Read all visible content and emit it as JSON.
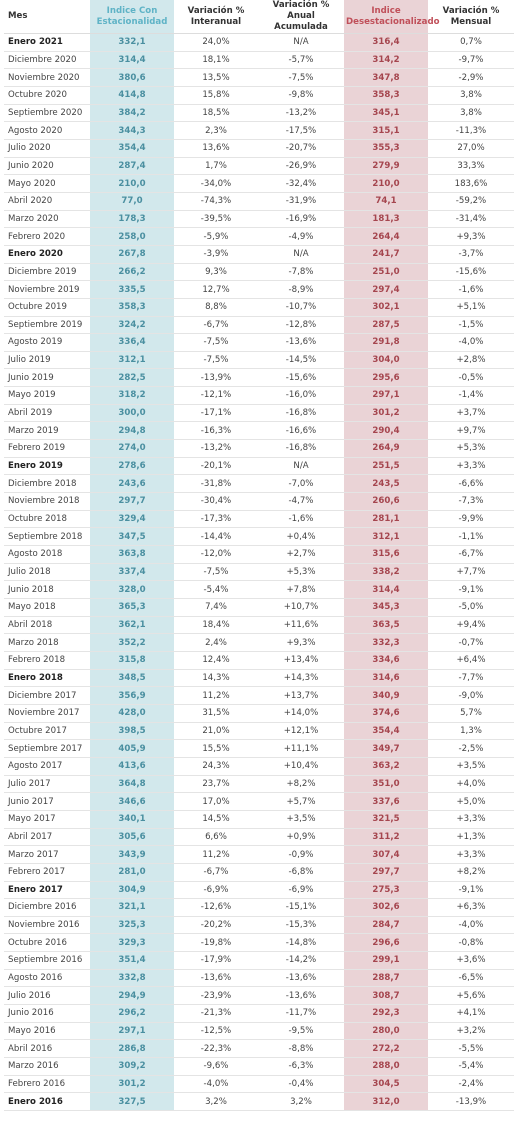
{
  "table": {
    "headers": [
      "Mes",
      "Indice Con Estacionalidad",
      "Variación % Interanual",
      "Variación % Anual Acumulada",
      "Indice Desestacionalizado",
      "Variación % Mensual"
    ],
    "rows": [
      [
        "Enero 2021",
        "332,1",
        "24,0%",
        "N/A",
        "316,4",
        "0,7%"
      ],
      [
        "Diciembre 2020",
        "314,4",
        "18,1%",
        "-5,7%",
        "314,2",
        "-9,7%"
      ],
      [
        "Noviembre 2020",
        "380,6",
        "13,5%",
        "-7,5%",
        "347,8",
        "-2,9%"
      ],
      [
        "Octubre 2020",
        "414,8",
        "15,8%",
        "-9,8%",
        "358,3",
        "3,8%"
      ],
      [
        "Septiembre 2020",
        "384,2",
        "18,5%",
        "-13,2%",
        "345,1",
        "3,8%"
      ],
      [
        "Agosto 2020",
        "344,3",
        "2,3%",
        "-17,5%",
        "315,1",
        "-11,3%"
      ],
      [
        "Julio 2020",
        "354,4",
        "13,6%",
        "-20,7%",
        "355,3",
        "27,0%"
      ],
      [
        "Junio 2020",
        "287,4",
        "1,7%",
        "-26,9%",
        "279,9",
        "33,3%"
      ],
      [
        "Mayo 2020",
        "210,0",
        "-34,0%",
        "-32,4%",
        "210,0",
        "183,6%"
      ],
      [
        "Abril 2020",
        "77,0",
        "-74,3%",
        "-31,9%",
        "74,1",
        "-59,2%"
      ],
      [
        "Marzo 2020",
        "178,3",
        "-39,5%",
        "-16,9%",
        "181,3",
        "-31,4%"
      ],
      [
        "Febrero 2020",
        "258,0",
        "-5,9%",
        "-4,9%",
        "264,4",
        "+9,3%"
      ],
      [
        "Enero 2020",
        "267,8",
        "-3,9%",
        "N/A",
        "241,7",
        "-3,7%"
      ],
      [
        "Diciembre 2019",
        "266,2",
        "9,3%",
        "-7,8%",
        "251,0",
        "-15,6%"
      ],
      [
        "Noviembre 2019",
        "335,5",
        "12,7%",
        "-8,9%",
        "297,4",
        "-1,6%"
      ],
      [
        "Octubre 2019",
        "358,3",
        "8,8%",
        "-10,7%",
        "302,1",
        "+5,1%"
      ],
      [
        "Septiembre 2019",
        "324,2",
        "-6,7%",
        "-12,8%",
        "287,5",
        "-1,5%"
      ],
      [
        "Agosto 2019",
        "336,4",
        "-7,5%",
        "-13,6%",
        "291,8",
        "-4,0%"
      ],
      [
        "Julio 2019",
        "312,1",
        "-7,5%",
        "-14,5%",
        "304,0",
        "+2,8%"
      ],
      [
        "Junio 2019",
        "282,5",
        "-13,9%",
        "-15,6%",
        "295,6",
        "-0,5%"
      ],
      [
        "Mayo 2019",
        "318,2",
        "-12,1%",
        "-16,0%",
        "297,1",
        "-1,4%"
      ],
      [
        "Abril 2019",
        "300,0",
        "-17,1%",
        "-16,8%",
        "301,2",
        "+3,7%"
      ],
      [
        "Marzo 2019",
        "294,8",
        "-16,3%",
        "-16,6%",
        "290,4",
        "+9,7%"
      ],
      [
        "Febrero 2019",
        "274,0",
        "-13,2%",
        "-16,8%",
        "264,9",
        "+5,3%"
      ],
      [
        "Enero 2019",
        "278,6",
        "-20,1%",
        "N/A",
        "251,5",
        "+3,3%"
      ],
      [
        "Diciembre 2018",
        "243,6",
        "-31,8%",
        "-7,0%",
        "243,5",
        "-6,6%"
      ],
      [
        "Noviembre 2018",
        "297,7",
        "-30,4%",
        "-4,7%",
        "260,6",
        "-7,3%"
      ],
      [
        "Octubre 2018",
        "329,4",
        "-17,3%",
        "-1,6%",
        "281,1",
        "-9,9%"
      ],
      [
        "Septiembre 2018",
        "347,5",
        "-14,4%",
        "+0,4%",
        "312,1",
        "-1,1%"
      ],
      [
        "Agosto 2018",
        "363,8",
        "-12,0%",
        "+2,7%",
        "315,6",
        "-6,7%"
      ],
      [
        "Julio 2018",
        "337,4",
        "-7,5%",
        "+5,3%",
        "338,2",
        "+7,7%"
      ],
      [
        "Junio 2018",
        "328,0",
        "-5,4%",
        "+7,8%",
        "314,4",
        "-9,1%"
      ],
      [
        "Mayo 2018",
        "365,3",
        "7,4%",
        "+10,7%",
        "345,3",
        "-5,0%"
      ],
      [
        "Abril 2018",
        "362,1",
        "18,4%",
        "+11,6%",
        "363,5",
        "+9,4%"
      ],
      [
        "Marzo 2018",
        "352,2",
        "2,4%",
        "+9,3%",
        "332,3",
        "-0,7%"
      ],
      [
        "Febrero 2018",
        "315,8",
        "12,4%",
        "+13,4%",
        "334,6",
        "+6,4%"
      ],
      [
        "Enero 2018",
        "348,5",
        "14,3%",
        "+14,3%",
        "314,6",
        "-7,7%"
      ],
      [
        "Diciembre 2017",
        "356,9",
        "11,2%",
        "+13,7%",
        "340,9",
        "-9,0%"
      ],
      [
        "Noviembre 2017",
        "428,0",
        "31,5%",
        "+14,0%",
        "374,6",
        "5,7%"
      ],
      [
        "Octubre 2017",
        "398,5",
        "21,0%",
        "+12,1%",
        "354,4",
        "1,3%"
      ],
      [
        "Septiembre 2017",
        "405,9",
        "15,5%",
        "+11,1%",
        "349,7",
        "-2,5%"
      ],
      [
        "Agosto 2017",
        "413,6",
        "24,3%",
        "+10,4%",
        "363,2",
        "+3,5%"
      ],
      [
        "Julio 2017",
        "364,8",
        "23,7%",
        "+8,2%",
        "351,0",
        "+4,0%"
      ],
      [
        "Junio 2017",
        "346,6",
        "17,0%",
        "+5,7%",
        "337,6",
        "+5,0%"
      ],
      [
        "Mayo 2017",
        "340,1",
        "14,5%",
        "+3,5%",
        "321,5",
        "+3,3%"
      ],
      [
        "Abril 2017",
        "305,6",
        "6,6%",
        "+0,9%",
        "311,2",
        "+1,3%"
      ],
      [
        "Marzo 2017",
        "343,9",
        "11,2%",
        "-0,9%",
        "307,4",
        "+3,3%"
      ],
      [
        "Febrero 2017",
        "281,0",
        "-6,7%",
        "-6,8%",
        "297,7",
        "+8,2%"
      ],
      [
        "Enero 2017",
        "304,9",
        "-6,9%",
        "-6,9%",
        "275,3",
        "-9,1%"
      ],
      [
        "Diciembre 2016",
        "321,1",
        "-12,6%",
        "-15,1%",
        "302,6",
        "+6,3%"
      ],
      [
        "Noviembre 2016",
        "325,3",
        "-20,2%",
        "-15,3%",
        "284,7",
        "-4,0%"
      ],
      [
        "Octubre 2016",
        "329,3",
        "-19,8%",
        "-14,8%",
        "296,6",
        "-0,8%"
      ],
      [
        "Septiembre 2016",
        "351,4",
        "-17,9%",
        "-14,2%",
        "299,1",
        "+3,6%"
      ],
      [
        "Agosto 2016",
        "332,8",
        "-13,6%",
        "-13,6%",
        "288,7",
        "-6,5%"
      ],
      [
        "Julio 2016",
        "294,9",
        "-23,9%",
        "-13,6%",
        "308,7",
        "+5,6%"
      ],
      [
        "Junio 2016",
        "296,2",
        "-21,3%",
        "-11,7%",
        "292,3",
        "+4,1%"
      ],
      [
        "Mayo 2016",
        "297,1",
        "-12,5%",
        "-9,5%",
        "280,0",
        "+3,2%"
      ],
      [
        "Abril 2016",
        "286,8",
        "-22,3%",
        "-8,8%",
        "272,2",
        "-5,5%"
      ],
      [
        "Marzo 2016",
        "309,2",
        "-9,6%",
        "-6,3%",
        "288,0",
        "-5,4%"
      ],
      [
        "Febrero 2016",
        "301,2",
        "-4,0%",
        "-0,4%",
        "304,5",
        "-2,4%"
      ],
      [
        "Enero 2016",
        "327,5",
        "3,2%",
        "3,2%",
        "312,0",
        "-13,9%"
      ]
    ]
  }
}
